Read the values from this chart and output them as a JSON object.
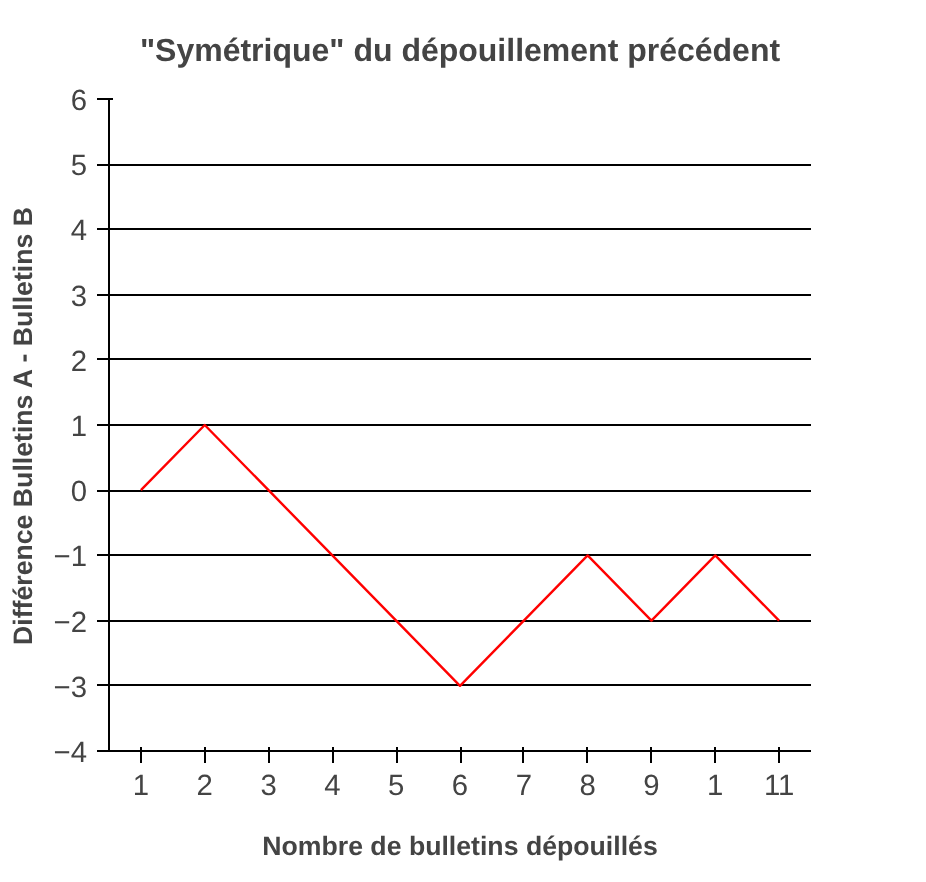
{
  "chart_data": {
    "type": "line",
    "title": "\"Symétrique\" du dépouillement précédent",
    "xlabel": "Nombre de bulletins dépouillés",
    "ylabel": "Différence Bulletins A - Bulletins B",
    "categories": [
      "1",
      "2",
      "3",
      "4",
      "5",
      "6",
      "7",
      "8",
      "9",
      "1",
      "11"
    ],
    "series": [
      {
        "color": "#ff0000",
        "values": [
          0,
          1,
          0,
          -1,
          -2,
          -3,
          -2,
          -1,
          -2,
          -1,
          -2
        ]
      }
    ],
    "ylim": [
      -4,
      6
    ],
    "yticks": [
      -4,
      -3,
      -2,
      -1,
      0,
      1,
      2,
      3,
      4,
      5,
      6
    ],
    "grid": "y",
    "marker": "none",
    "line_style": "solid"
  }
}
